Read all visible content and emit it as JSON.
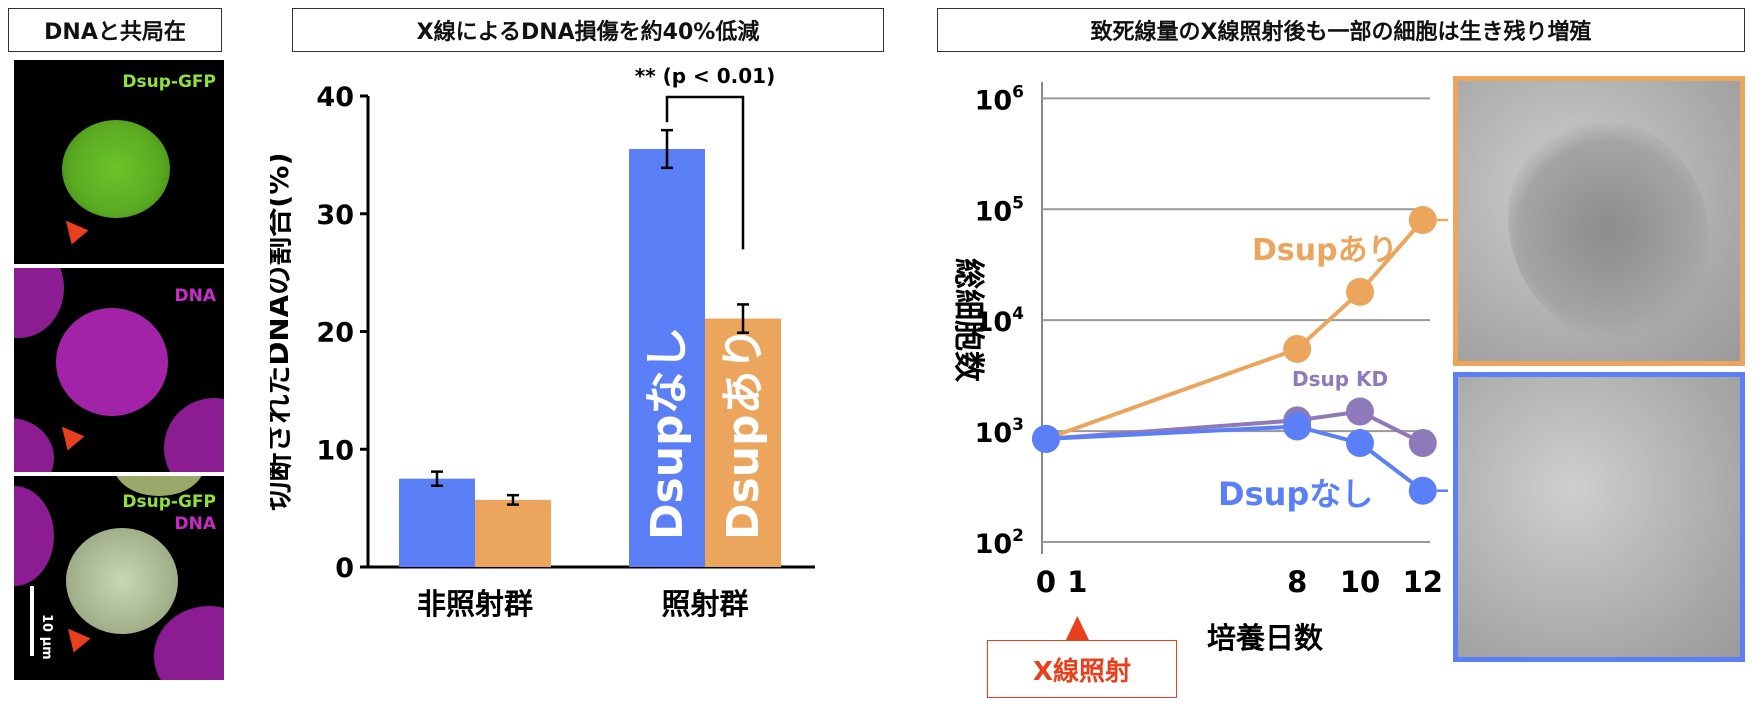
{
  "panel1": {
    "title": "DNAと共局在",
    "img1_label": "Dsup-GFP",
    "img2_label": "DNA",
    "img3_label_a": "Dsup-GFP",
    "img3_label_b": "DNA",
    "scale_label": "10 μm",
    "colors": {
      "gfp": "#8fe03a",
      "dna": "#c82cc8",
      "arrow": "#e8401c"
    }
  },
  "panel2": {
    "title": "X線によるDNA損傷を約40%低減",
    "significance": "** (p < 0.01)",
    "chart_data": {
      "type": "bar",
      "categories": [
        "非照射群",
        "照射群"
      ],
      "series": [
        {
          "name": "Dsupなし",
          "values": [
            7.5,
            35.5
          ],
          "errors": [
            0.6,
            1.6
          ],
          "color": "#5a7ff7"
        },
        {
          "name": "Dsupあり",
          "values": [
            5.7,
            21.1
          ],
          "errors": [
            0.4,
            1.2
          ],
          "color": "#eba55d"
        }
      ],
      "ylabel": "切断されたDNAの割合(%)",
      "ylim": [
        0,
        40
      ],
      "yticks": [
        0,
        10,
        20,
        30,
        40
      ],
      "grid": false
    }
  },
  "panel3": {
    "title": "致死線量のX線照射後も一部の細胞は生き残り増殖",
    "xray_label": "X線照射",
    "chart_data": {
      "type": "line",
      "xlabel": "培養日数",
      "ylabel": "総細胞数",
      "xticks": [
        0,
        1,
        8,
        10,
        12
      ],
      "y_scale": "log",
      "yticks": [
        100,
        1000,
        10000,
        100000,
        1000000
      ],
      "ytick_labels": [
        {
          "base": "10",
          "exp": "2"
        },
        {
          "base": "10",
          "exp": "3"
        },
        {
          "base": "10",
          "exp": "4"
        },
        {
          "base": "10",
          "exp": "5"
        },
        {
          "base": "10",
          "exp": "6"
        }
      ],
      "ylim": [
        100,
        1000000
      ],
      "grid": true,
      "series": [
        {
          "name": "Dsupあり",
          "x": [
            0,
            8,
            10,
            12
          ],
          "y": [
            850,
            5500,
            18000,
            80000
          ],
          "color": "#eba55d"
        },
        {
          "name": "Dsup KD",
          "x": [
            0,
            8,
            10,
            12
          ],
          "y": [
            850,
            1250,
            1500,
            780
          ],
          "color": "#8e79bb"
        },
        {
          "name": "Dsupなし",
          "x": [
            0,
            8,
            10,
            12
          ],
          "y": [
            850,
            1100,
            780,
            290
          ],
          "color": "#5a7ff7"
        }
      ]
    }
  }
}
